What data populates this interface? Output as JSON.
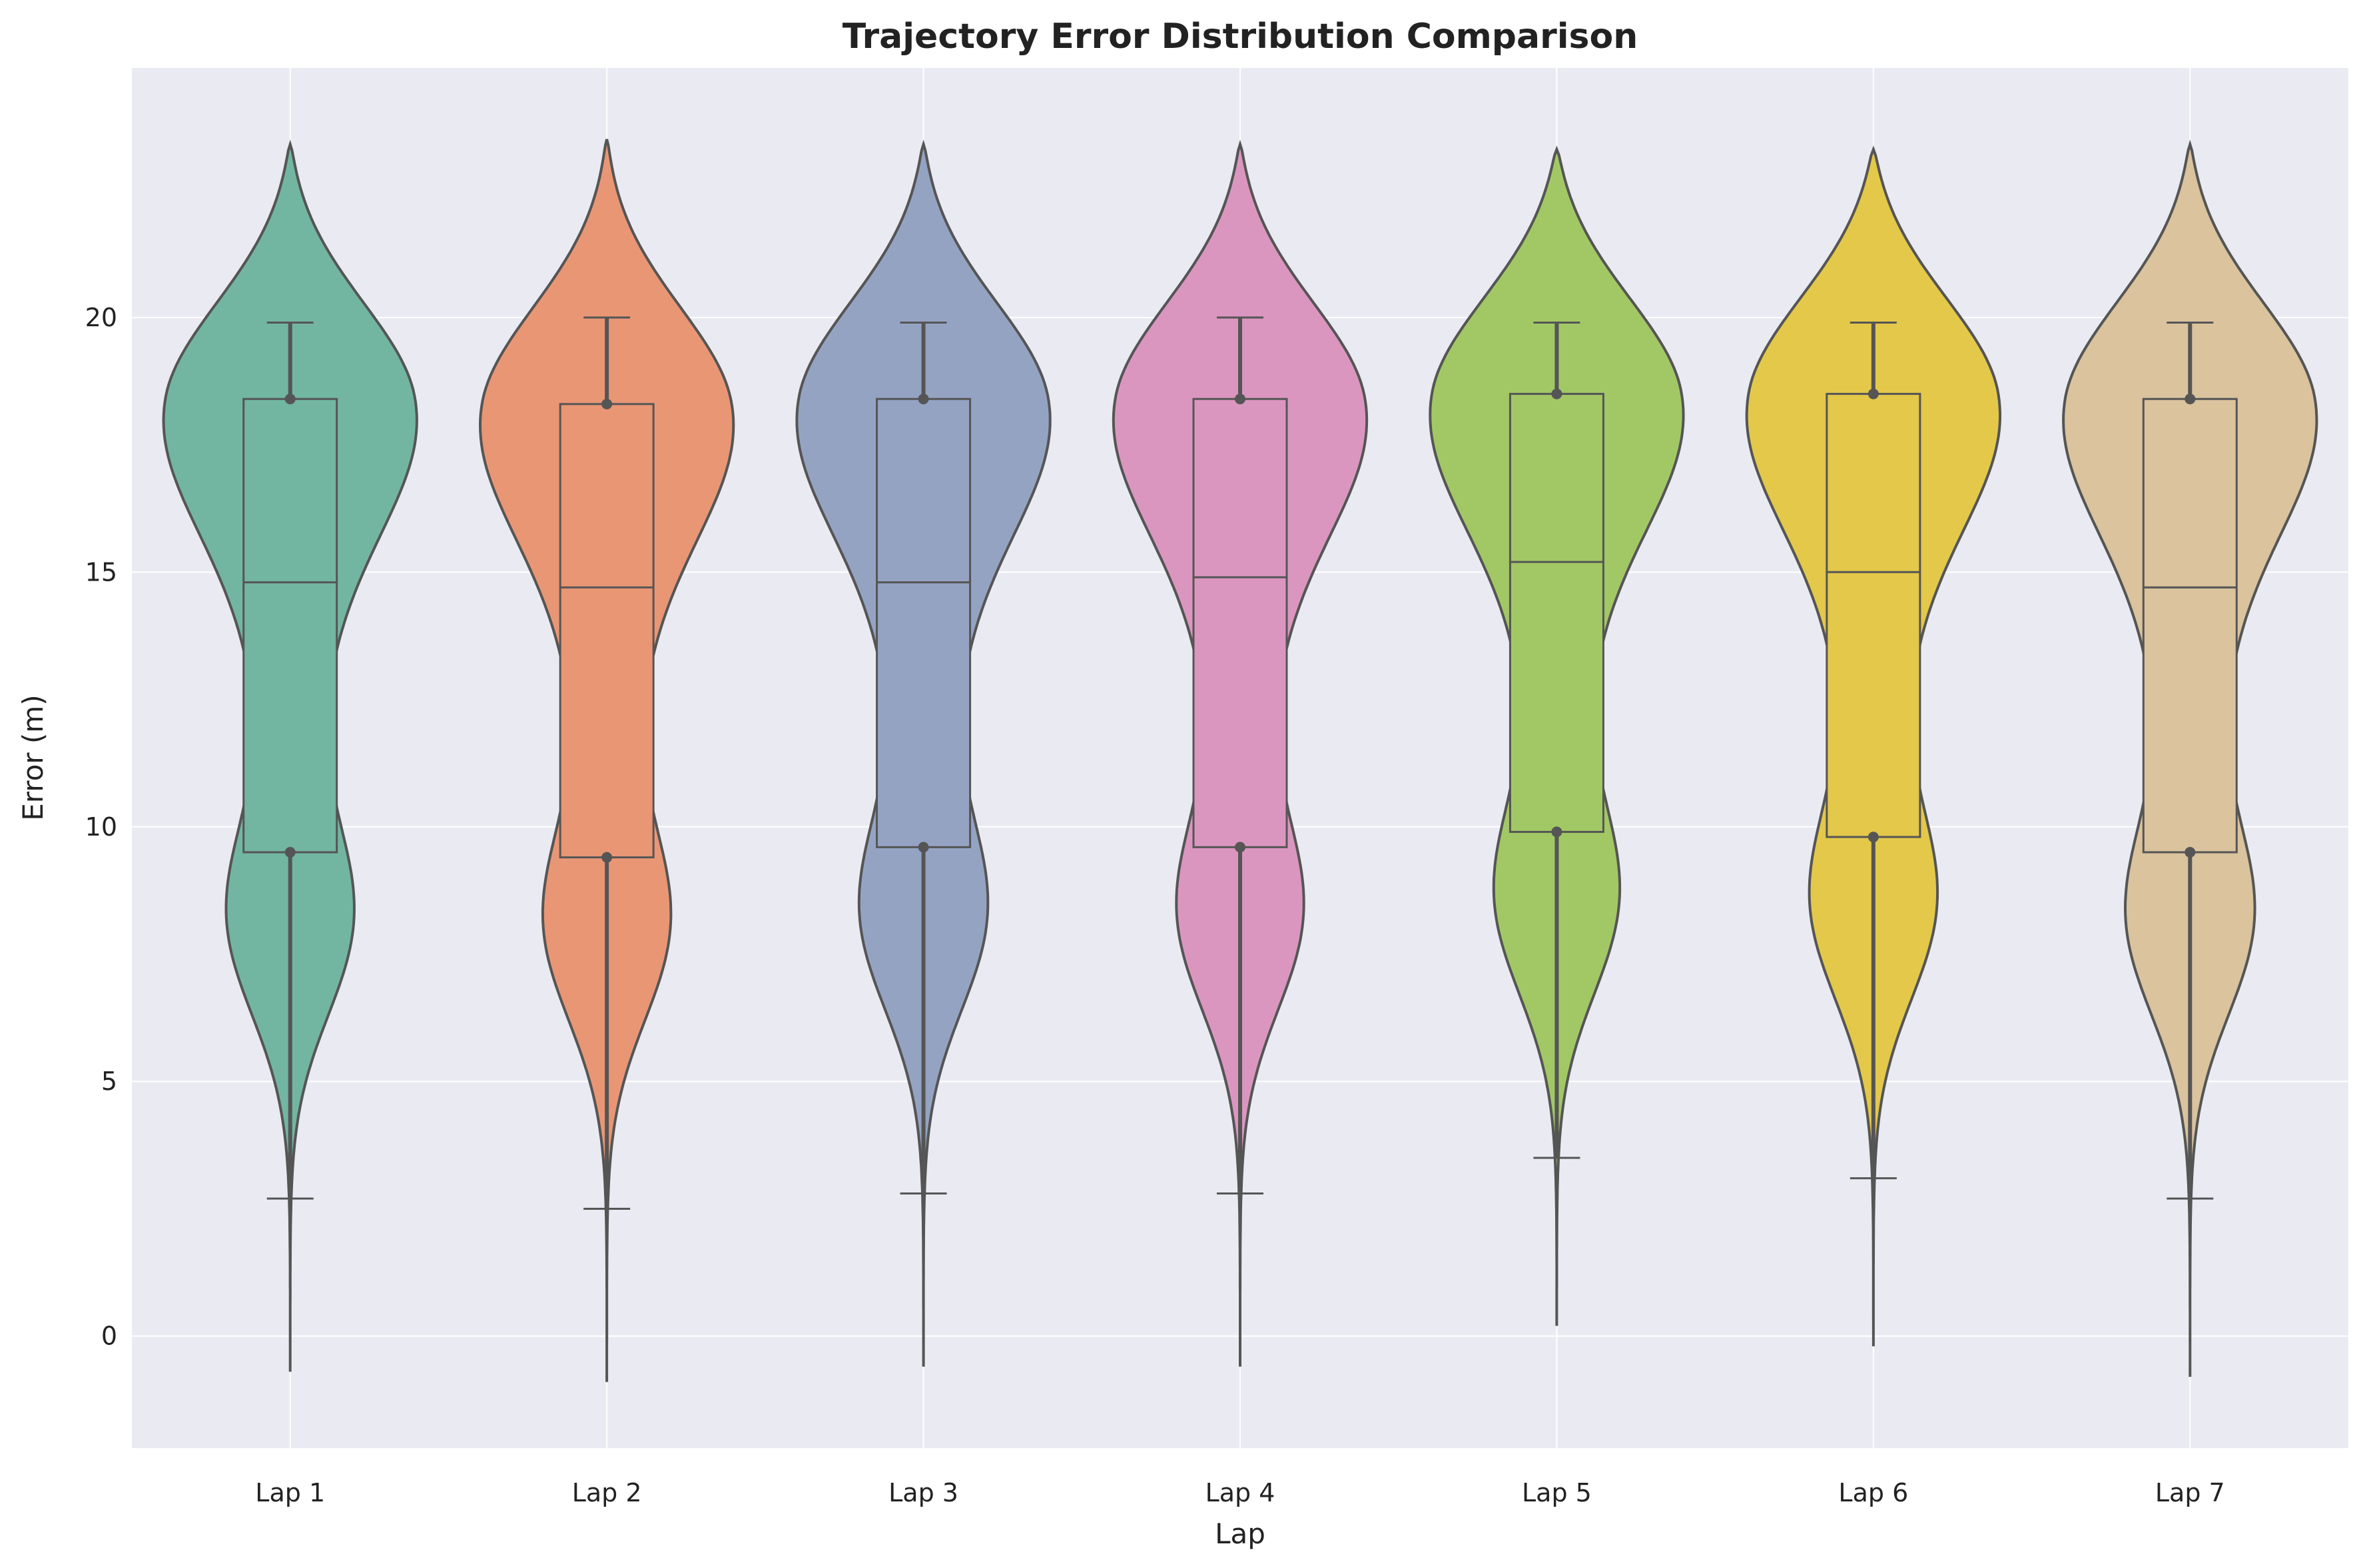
{
  "chart_data": {
    "type": "violin",
    "title": "Trajectory Error Distribution Comparison",
    "xlabel": "Lap",
    "ylabel": "Error (m)",
    "ylim": [
      -2.2,
      24.9
    ],
    "yticks": [
      0,
      5,
      10,
      15,
      20
    ],
    "grid": true,
    "colors": {
      "background": "#eaeaf2",
      "grid": "#ffffff",
      "outline": "#555555"
    },
    "categories": [
      "Lap 1",
      "Lap 2",
      "Lap 3",
      "Lap 4",
      "Lap 5",
      "Lap 6",
      "Lap 7"
    ],
    "series": [
      {
        "category": "Lap 1",
        "color": "#72b6a1",
        "min": 2.7,
        "q1": 9.5,
        "median": 14.8,
        "q3": 18.4,
        "max": 19.9,
        "kde_min": -0.7,
        "kde_max": 23.4
      },
      {
        "category": "Lap 2",
        "color": "#e99675",
        "min": 2.5,
        "q1": 9.4,
        "median": 14.7,
        "q3": 18.3,
        "max": 20.0,
        "kde_min": -0.9,
        "kde_max": 23.5
      },
      {
        "category": "Lap 3",
        "color": "#95a3c3",
        "min": 2.8,
        "q1": 9.6,
        "median": 14.8,
        "q3": 18.4,
        "max": 19.9,
        "kde_min": -0.6,
        "kde_max": 23.4
      },
      {
        "category": "Lap 4",
        "color": "#db96c0",
        "min": 2.8,
        "q1": 9.6,
        "median": 14.9,
        "q3": 18.4,
        "max": 20.0,
        "kde_min": -0.6,
        "kde_max": 23.4
      },
      {
        "category": "Lap 5",
        "color": "#a2c865",
        "min": 3.5,
        "q1": 9.9,
        "median": 15.2,
        "q3": 18.5,
        "max": 19.9,
        "kde_min": 0.2,
        "kde_max": 23.3
      },
      {
        "category": "Lap 6",
        "color": "#e3c84a",
        "min": 3.1,
        "q1": 9.8,
        "median": 15.0,
        "q3": 18.5,
        "max": 19.9,
        "kde_min": -0.2,
        "kde_max": 23.3
      },
      {
        "category": "Lap 7",
        "color": "#dac39d",
        "min": 2.7,
        "q1": 9.5,
        "median": 14.7,
        "q3": 18.4,
        "max": 19.9,
        "kde_min": -0.8,
        "kde_max": 23.4
      }
    ]
  }
}
